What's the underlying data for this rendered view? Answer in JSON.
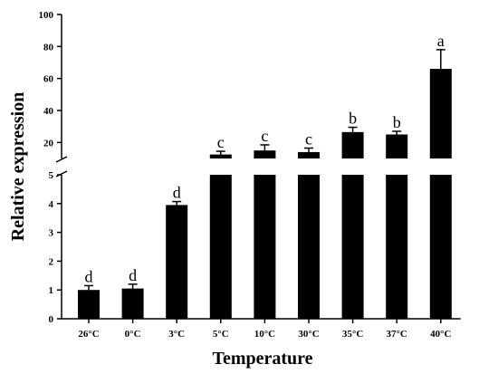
{
  "chart_data": {
    "type": "bar",
    "title": "",
    "xlabel": "Temperature",
    "ylabel": "Relative expression",
    "categories": [
      "26°C",
      "0°C",
      "3°C",
      "5°C",
      "10°C",
      "30°C",
      "35°C",
      "37°C",
      "40°C"
    ],
    "values": [
      1.0,
      1.05,
      3.95,
      12.5,
      15.0,
      14.0,
      26.5,
      25.0,
      66.0
    ],
    "errors": [
      0.15,
      0.15,
      0.12,
      2.0,
      3.5,
      2.5,
      3.0,
      2.0,
      12.0
    ],
    "significance": [
      "d",
      "d",
      "d",
      "c",
      "c",
      "c",
      "b",
      "b",
      "a"
    ],
    "y_axis_broken": true,
    "y_lower_range": [
      0,
      5
    ],
    "y_upper_range": [
      10,
      100
    ],
    "y_lower_ticks": [
      "0",
      "1",
      "2",
      "3",
      "4",
      "5"
    ],
    "y_upper_ticks": [
      "20",
      "40",
      "60",
      "80",
      "100"
    ],
    "bar_color": "#000000",
    "grid": false
  }
}
